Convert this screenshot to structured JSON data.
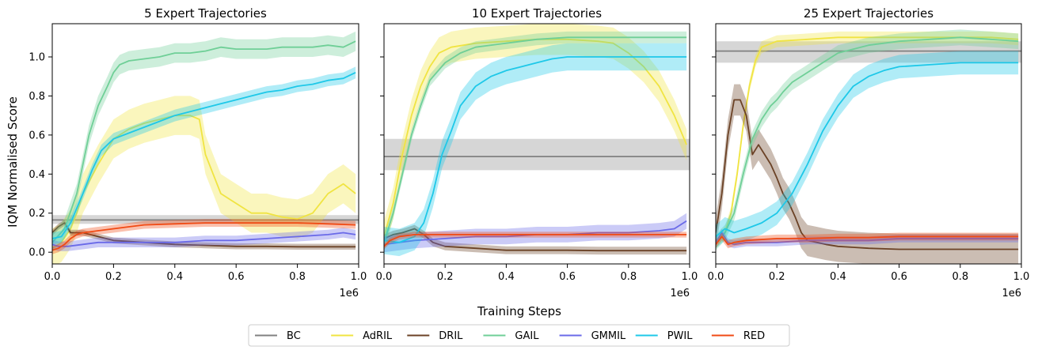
{
  "figure": {
    "xlabel": "Training Steps",
    "ylabel": "IQM Normalised Score",
    "x_scale_label": "1e6"
  },
  "chart_data": [
    {
      "type": "line",
      "title": "5 Expert Trajectories",
      "xlim": [
        0,
        1.0
      ],
      "ylim": [
        -0.06,
        1.17
      ],
      "xticks": [
        "0.0",
        "0.2",
        "0.4",
        "0.6",
        "0.8",
        "1.0"
      ],
      "yticks": [
        "0.0",
        "0.2",
        "0.4",
        "0.6",
        "0.8",
        "1.0"
      ],
      "series": [
        {
          "name": "BC",
          "color": "#808080",
          "x": [
            0,
            1.0
          ],
          "y": [
            0.165,
            0.165
          ],
          "band": [
            0.145,
            0.19
          ],
          "flat": true
        },
        {
          "name": "AdRIL",
          "color": "#f0e442",
          "x": [
            0,
            0.03,
            0.06,
            0.08,
            0.1,
            0.15,
            0.2,
            0.25,
            0.3,
            0.35,
            0.4,
            0.45,
            0.48,
            0.5,
            0.55,
            0.6,
            0.65,
            0.7,
            0.75,
            0.8,
            0.85,
            0.9,
            0.95,
            0.99
          ],
          "y": [
            0.02,
            0.05,
            0.12,
            0.2,
            0.3,
            0.45,
            0.58,
            0.63,
            0.66,
            0.68,
            0.7,
            0.7,
            0.68,
            0.5,
            0.3,
            0.25,
            0.2,
            0.2,
            0.18,
            0.17,
            0.2,
            0.3,
            0.35,
            0.3
          ],
          "band_width": 0.1
        },
        {
          "name": "DRIL",
          "color": "#6b4226",
          "x": [
            0,
            0.02,
            0.04,
            0.06,
            0.1,
            0.15,
            0.2,
            0.3,
            0.4,
            0.5,
            0.6,
            0.7,
            0.8,
            0.9,
            0.99
          ],
          "y": [
            0.1,
            0.13,
            0.15,
            0.1,
            0.1,
            0.08,
            0.06,
            0.05,
            0.04,
            0.035,
            0.03,
            0.03,
            0.028,
            0.028,
            0.028
          ],
          "band_width": 0.015
        },
        {
          "name": "GAIL",
          "color": "#6fcf97",
          "x": [
            0,
            0.04,
            0.08,
            0.1,
            0.12,
            0.15,
            0.18,
            0.2,
            0.22,
            0.25,
            0.3,
            0.35,
            0.4,
            0.45,
            0.5,
            0.55,
            0.6,
            0.65,
            0.7,
            0.75,
            0.8,
            0.85,
            0.9,
            0.95,
            0.99
          ],
          "y": [
            0.05,
            0.12,
            0.3,
            0.45,
            0.6,
            0.75,
            0.85,
            0.92,
            0.96,
            0.98,
            0.99,
            1.0,
            1.02,
            1.02,
            1.03,
            1.05,
            1.04,
            1.04,
            1.04,
            1.05,
            1.05,
            1.05,
            1.06,
            1.05,
            1.08
          ],
          "band_width": 0.05
        },
        {
          "name": "GMMIL",
          "color": "#6a6ae8",
          "x": [
            0,
            0.02,
            0.05,
            0.1,
            0.15,
            0.2,
            0.3,
            0.4,
            0.5,
            0.6,
            0.7,
            0.8,
            0.9,
            0.95,
            0.99
          ],
          "y": [
            0.04,
            0.03,
            0.03,
            0.04,
            0.05,
            0.05,
            0.05,
            0.05,
            0.06,
            0.06,
            0.07,
            0.08,
            0.09,
            0.1,
            0.09
          ],
          "band_width": 0.025
        },
        {
          "name": "PWIL",
          "color": "#1ec8e8",
          "x": [
            0,
            0.03,
            0.06,
            0.1,
            0.13,
            0.16,
            0.2,
            0.25,
            0.3,
            0.35,
            0.4,
            0.45,
            0.5,
            0.55,
            0.6,
            0.65,
            0.7,
            0.75,
            0.8,
            0.85,
            0.9,
            0.95,
            0.99
          ],
          "y": [
            0.07,
            0.08,
            0.15,
            0.3,
            0.42,
            0.52,
            0.58,
            0.61,
            0.64,
            0.67,
            0.7,
            0.72,
            0.74,
            0.76,
            0.78,
            0.8,
            0.82,
            0.83,
            0.85,
            0.86,
            0.88,
            0.89,
            0.92
          ],
          "band_width": 0.03
        },
        {
          "name": "RED",
          "color": "#f04a14",
          "x": [
            0,
            0.02,
            0.04,
            0.06,
            0.08,
            0.1,
            0.15,
            0.2,
            0.25,
            0.3,
            0.4,
            0.5,
            0.6,
            0.7,
            0.8,
            0.9,
            0.99
          ],
          "y": [
            0.01,
            0.02,
            0.04,
            0.07,
            0.09,
            0.1,
            0.11,
            0.12,
            0.13,
            0.14,
            0.145,
            0.15,
            0.15,
            0.15,
            0.15,
            0.145,
            0.14
          ],
          "band_width": 0.02
        }
      ]
    },
    {
      "type": "line",
      "title": "10 Expert Trajectories",
      "xlim": [
        0,
        1.0
      ],
      "ylim": [
        -0.06,
        1.17
      ],
      "xticks": [
        "0.0",
        "0.2",
        "0.4",
        "0.6",
        "0.8",
        "1.0"
      ],
      "yticks": [],
      "series": [
        {
          "name": "BC",
          "color": "#808080",
          "x": [
            0,
            1.0
          ],
          "y": [
            0.49,
            0.49
          ],
          "band": [
            0.42,
            0.58
          ],
          "flat": true
        },
        {
          "name": "AdRIL",
          "color": "#f0e442",
          "x": [
            0,
            0.03,
            0.06,
            0.09,
            0.12,
            0.15,
            0.18,
            0.22,
            0.3,
            0.4,
            0.5,
            0.6,
            0.7,
            0.75,
            0.8,
            0.85,
            0.9,
            0.95,
            0.99
          ],
          "y": [
            0.08,
            0.25,
            0.5,
            0.7,
            0.85,
            0.95,
            1.02,
            1.05,
            1.07,
            1.08,
            1.09,
            1.09,
            1.08,
            1.07,
            1.02,
            0.95,
            0.85,
            0.7,
            0.55
          ],
          "band_width": 0.08
        },
        {
          "name": "DRIL",
          "color": "#6b4226",
          "x": [
            0,
            0.03,
            0.06,
            0.1,
            0.13,
            0.16,
            0.2,
            0.3,
            0.4,
            0.5,
            0.6,
            0.7,
            0.8,
            0.9,
            0.99
          ],
          "y": [
            0.07,
            0.09,
            0.1,
            0.12,
            0.09,
            0.05,
            0.03,
            0.02,
            0.01,
            0.01,
            0.01,
            0.008,
            0.008,
            0.008,
            0.008
          ],
          "band_width": 0.02
        },
        {
          "name": "GAIL",
          "color": "#6fcf97",
          "x": [
            0,
            0.03,
            0.06,
            0.09,
            0.12,
            0.15,
            0.2,
            0.25,
            0.3,
            0.4,
            0.5,
            0.6,
            0.7,
            0.8,
            0.9,
            0.99
          ],
          "y": [
            0.05,
            0.2,
            0.4,
            0.6,
            0.75,
            0.88,
            0.97,
            1.02,
            1.05,
            1.07,
            1.09,
            1.1,
            1.1,
            1.1,
            1.1,
            1.1
          ],
          "band_width": 0.03
        },
        {
          "name": "GMMIL",
          "color": "#6a6ae8",
          "x": [
            0,
            0.05,
            0.1,
            0.2,
            0.3,
            0.4,
            0.5,
            0.6,
            0.7,
            0.8,
            0.9,
            0.95,
            0.99
          ],
          "y": [
            0.04,
            0.05,
            0.06,
            0.07,
            0.08,
            0.08,
            0.09,
            0.09,
            0.1,
            0.1,
            0.11,
            0.12,
            0.16
          ],
          "band_width": 0.04
        },
        {
          "name": "PWIL",
          "color": "#1ec8e8",
          "x": [
            0,
            0.05,
            0.1,
            0.13,
            0.16,
            0.19,
            0.22,
            0.25,
            0.3,
            0.35,
            0.4,
            0.45,
            0.5,
            0.55,
            0.6,
            0.7,
            0.8,
            0.9,
            0.99
          ],
          "y": [
            0.06,
            0.05,
            0.08,
            0.15,
            0.3,
            0.5,
            0.62,
            0.75,
            0.85,
            0.9,
            0.93,
            0.95,
            0.97,
            0.99,
            1.0,
            1.0,
            1.0,
            1.0,
            1.0
          ],
          "band_width": 0.07
        },
        {
          "name": "RED",
          "color": "#f04a14",
          "x": [
            0,
            0.02,
            0.05,
            0.1,
            0.2,
            0.3,
            0.4,
            0.5,
            0.6,
            0.7,
            0.8,
            0.9,
            0.99
          ],
          "y": [
            0.03,
            0.06,
            0.08,
            0.09,
            0.09,
            0.09,
            0.09,
            0.09,
            0.09,
            0.09,
            0.09,
            0.09,
            0.09
          ],
          "band_width": 0.015
        }
      ]
    },
    {
      "type": "line",
      "title": "25 Expert Trajectories",
      "xlim": [
        0,
        1.0
      ],
      "ylim": [
        -0.06,
        1.17
      ],
      "xticks": [
        "0.0",
        "0.2",
        "0.4",
        "0.6",
        "0.8",
        "1.0"
      ],
      "yticks": [],
      "series": [
        {
          "name": "BC",
          "color": "#808080",
          "x": [
            0,
            1.0
          ],
          "y": [
            1.03,
            1.03
          ],
          "band": [
            0.97,
            1.08
          ],
          "flat": true
        },
        {
          "name": "AdRIL",
          "color": "#f0e442",
          "x": [
            0,
            0.03,
            0.05,
            0.07,
            0.09,
            0.11,
            0.13,
            0.15,
            0.2,
            0.3,
            0.4,
            0.5,
            0.6,
            0.7,
            0.8,
            0.9,
            0.99
          ],
          "y": [
            0.05,
            0.1,
            0.2,
            0.4,
            0.65,
            0.85,
            0.98,
            1.05,
            1.08,
            1.09,
            1.1,
            1.1,
            1.1,
            1.1,
            1.1,
            1.1,
            1.09
          ],
          "band_width": 0.03
        },
        {
          "name": "DRIL",
          "color": "#6b4226",
          "x": [
            0,
            0.02,
            0.04,
            0.06,
            0.08,
            0.1,
            0.12,
            0.14,
            0.16,
            0.18,
            0.2,
            0.22,
            0.24,
            0.26,
            0.28,
            0.3,
            0.33,
            0.36,
            0.4,
            0.45,
            0.5,
            0.6,
            0.7,
            0.8,
            0.9,
            0.99
          ],
          "y": [
            0.1,
            0.3,
            0.6,
            0.78,
            0.78,
            0.7,
            0.5,
            0.55,
            0.5,
            0.45,
            0.38,
            0.3,
            0.25,
            0.18,
            0.1,
            0.06,
            0.05,
            0.04,
            0.03,
            0.025,
            0.02,
            0.015,
            0.015,
            0.015,
            0.015,
            0.015
          ],
          "band_width": 0.08
        },
        {
          "name": "GAIL",
          "color": "#6fcf97",
          "x": [
            0,
            0.03,
            0.06,
            0.09,
            0.12,
            0.15,
            0.18,
            0.2,
            0.22,
            0.25,
            0.3,
            0.35,
            0.4,
            0.5,
            0.6,
            0.7,
            0.8,
            0.9,
            0.99
          ],
          "y": [
            0.05,
            0.1,
            0.2,
            0.4,
            0.58,
            0.68,
            0.75,
            0.78,
            0.82,
            0.87,
            0.92,
            0.97,
            1.02,
            1.06,
            1.08,
            1.09,
            1.1,
            1.09,
            1.08
          ],
          "band_width": 0.04
        },
        {
          "name": "GMMIL",
          "color": "#6a6ae8",
          "x": [
            0,
            0.02,
            0.04,
            0.06,
            0.1,
            0.2,
            0.3,
            0.4,
            0.5,
            0.6,
            0.7,
            0.8,
            0.9,
            0.99
          ],
          "y": [
            0.05,
            0.1,
            0.05,
            0.04,
            0.05,
            0.05,
            0.06,
            0.06,
            0.06,
            0.07,
            0.07,
            0.07,
            0.07,
            0.07
          ],
          "band_width": 0.02
        },
        {
          "name": "PWIL",
          "color": "#1ec8e8",
          "x": [
            0,
            0.03,
            0.06,
            0.1,
            0.15,
            0.2,
            0.25,
            0.3,
            0.35,
            0.4,
            0.45,
            0.5,
            0.55,
            0.6,
            0.7,
            0.8,
            0.9,
            0.99
          ],
          "y": [
            0.08,
            0.12,
            0.1,
            0.12,
            0.15,
            0.2,
            0.3,
            0.45,
            0.62,
            0.75,
            0.85,
            0.9,
            0.93,
            0.95,
            0.96,
            0.97,
            0.97,
            0.97
          ],
          "band_width": 0.06
        },
        {
          "name": "RED",
          "color": "#f04a14",
          "x": [
            0,
            0.02,
            0.04,
            0.06,
            0.1,
            0.2,
            0.3,
            0.4,
            0.5,
            0.6,
            0.7,
            0.8,
            0.9,
            0.99
          ],
          "y": [
            0.04,
            0.08,
            0.04,
            0.05,
            0.06,
            0.07,
            0.07,
            0.075,
            0.075,
            0.08,
            0.08,
            0.08,
            0.08,
            0.08
          ],
          "band_width": 0.02
        }
      ]
    }
  ],
  "legend": {
    "placement": "bottom-center",
    "entries": [
      {
        "name": "BC",
        "color": "#808080"
      },
      {
        "name": "AdRIL",
        "color": "#f0e442"
      },
      {
        "name": "DRIL",
        "color": "#6b4226"
      },
      {
        "name": "GAIL",
        "color": "#6fcf97"
      },
      {
        "name": "GMMIL",
        "color": "#6a6ae8"
      },
      {
        "name": "PWIL",
        "color": "#1ec8e8"
      },
      {
        "name": "RED",
        "color": "#f04a14"
      }
    ]
  }
}
